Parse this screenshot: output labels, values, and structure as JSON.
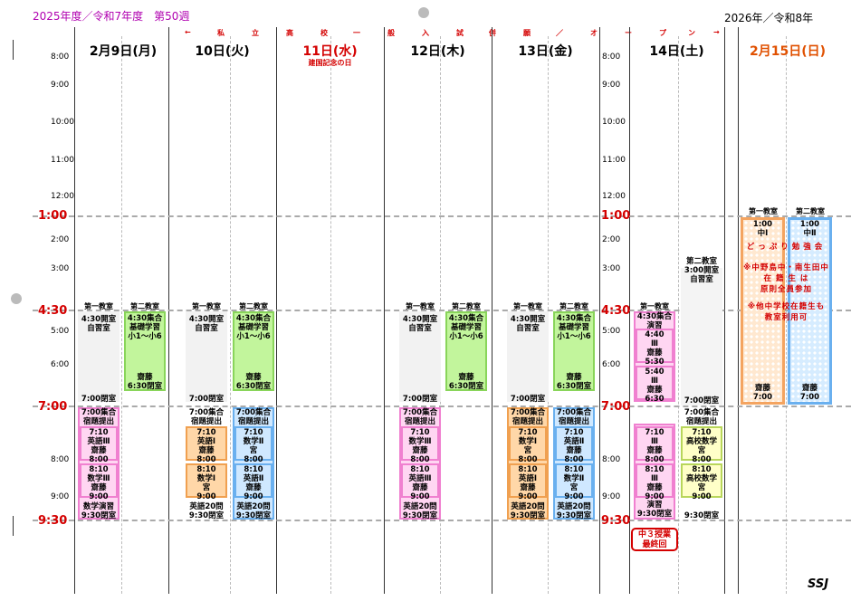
{
  "header": {
    "left_title": "2025年度／令和7年度　第50週",
    "right_title": "2026年／令和8年",
    "signature": "SSJ"
  },
  "banner": [
    "←",
    "私",
    "立",
    "高",
    "校",
    "一",
    "般",
    "入",
    "試",
    "併",
    "願",
    "／",
    "オ",
    "ー",
    "プ",
    "ン",
    "→"
  ],
  "days": [
    {
      "label": "2月9日(月)"
    },
    {
      "label": "10日(火)"
    },
    {
      "label": "11日(水)",
      "sub": "建国記念の日"
    },
    {
      "label": "12日(木)"
    },
    {
      "label": "13日(金)"
    },
    {
      "label": "14日(土)"
    },
    {
      "label": "2月15日(日)"
    }
  ],
  "times_left": [
    "8:00",
    "9:00",
    "10:00",
    "11:00",
    "12:00",
    "1:00",
    "2:00",
    "3:00",
    "4:30",
    "5:00",
    "6:00",
    "7:00",
    "8:00",
    "9:00",
    "9:30"
  ],
  "times_right": [
    "8:00",
    "9:00",
    "10:00",
    "11:00",
    "12:00",
    "1:00",
    "2:00",
    "3:00",
    "4:30",
    "5:00",
    "6:00",
    "7:00",
    "8:00",
    "9:00",
    "9:30"
  ],
  "room1": "第一教室",
  "room2": "第二教室",
  "mon": {
    "r1_top": "4:30開室\n自習室",
    "r1_close": "7:00閉室",
    "r2": "4:30集合\n基礎学習\n小1〜小6",
    "r2_b": "齋藤\n6:30閉室",
    "e1": "7:00集合\n宿題提出",
    "e2": "7:10\n英語Ⅲ\n齋藤\n8:00",
    "e3": "8:10\n数学Ⅲ\n齋藤\n9:00",
    "e4": "数学演習\n9:30閉室"
  },
  "tue": {
    "r1_top": "4:30開室\n自習室",
    "r1_close": "7:00閉室",
    "r2": "4:30集合\n基礎学習\n小1〜小6",
    "r2_b": "齋藤\n6:30閉室",
    "a1": "7:00集合\n宿題提出",
    "a2": "7:10\n英語Ⅰ\n齋藤\n8:00",
    "a3": "8:10\n数学Ⅰ\n宮\n9:00",
    "a4": "英語20問\n9:30閉室",
    "b1": "7:00集合\n宿題提出",
    "b2": "7:10\n数学Ⅱ\n宮\n8:00",
    "b3": "8:10\n英語Ⅱ\n齋藤\n9:00",
    "b4": "英語20問\n9:30閉室"
  },
  "thu": {
    "r1_top": "4:30開室\n自習室",
    "r1_close": "7:00閉室",
    "r2": "4:30集合\n基礎学習\n小1〜小6",
    "r2_b": "齋藤\n6:30閉室",
    "e1": "7:00集合\n宿題提出",
    "e2": "7:10\n数学Ⅲ\n齋藤\n8:00",
    "e3": "8:10\n英語Ⅲ\n齋藤\n9:00",
    "e4": "英語20問\n9:30閉室"
  },
  "fri": {
    "r1_top": "4:30開室\n自習室",
    "r1_close": "7:00閉室",
    "r2": "4:30集合\n基礎学習\n小1〜小6",
    "r2_b": "齋藤\n6:30閉室",
    "a1": "7:00集合\n宿題提出",
    "a2": "7:10\n数学Ⅰ\n宮\n8:00",
    "a3": "8:10\n英語Ⅰ\n齋藤\n9:00",
    "a4": "英語20問\n9:30閉室",
    "b1": "7:00集合\n宿題提出",
    "b2": "7:10\n英語Ⅱ\n齋藤\n8:00",
    "b3": "8:10\n数学Ⅱ\n宮\n9:00",
    "b4": "英語20問\n9:30閉室"
  },
  "sat": {
    "r1_a": "4:30集合\n演習",
    "r1_b": "4:40\nⅢ\n齋藤\n5:30",
    "r1_c": "5:40\nⅢ\n齋藤\n6:30",
    "r1_d": "7:10\nⅢ\n齋藤\n8:00",
    "r1_e": "8:10\nⅢ\n齋藤\n9:00",
    "r1_f": "演習\n9:30閉室",
    "note": "中３授業\n最終回",
    "r2_top": "第二教室\n3:00開室\n自習室",
    "r2_close": "7:00閉室",
    "r2_a": "7:00集合\n宿題提出",
    "r2_b": "7:10\n高校数学\n宮\n8:00",
    "r2_c": "8:10\n高校数学\n宮\n9:00",
    "r2_d": "9:30閉室"
  },
  "sun": {
    "r1_head": "1:00\n中Ⅰ",
    "r2_head": "1:00\n中Ⅱ",
    "t1": "どっぷり勉強会",
    "t2": "※中野島中・南生田中\n在 籍 生 は\n原則全員参加",
    "t3": "※他中学校在籍生も\n教室利用可",
    "r1_foot": "齋藤\n7:00",
    "r2_foot": "齋藤\n7:00"
  }
}
